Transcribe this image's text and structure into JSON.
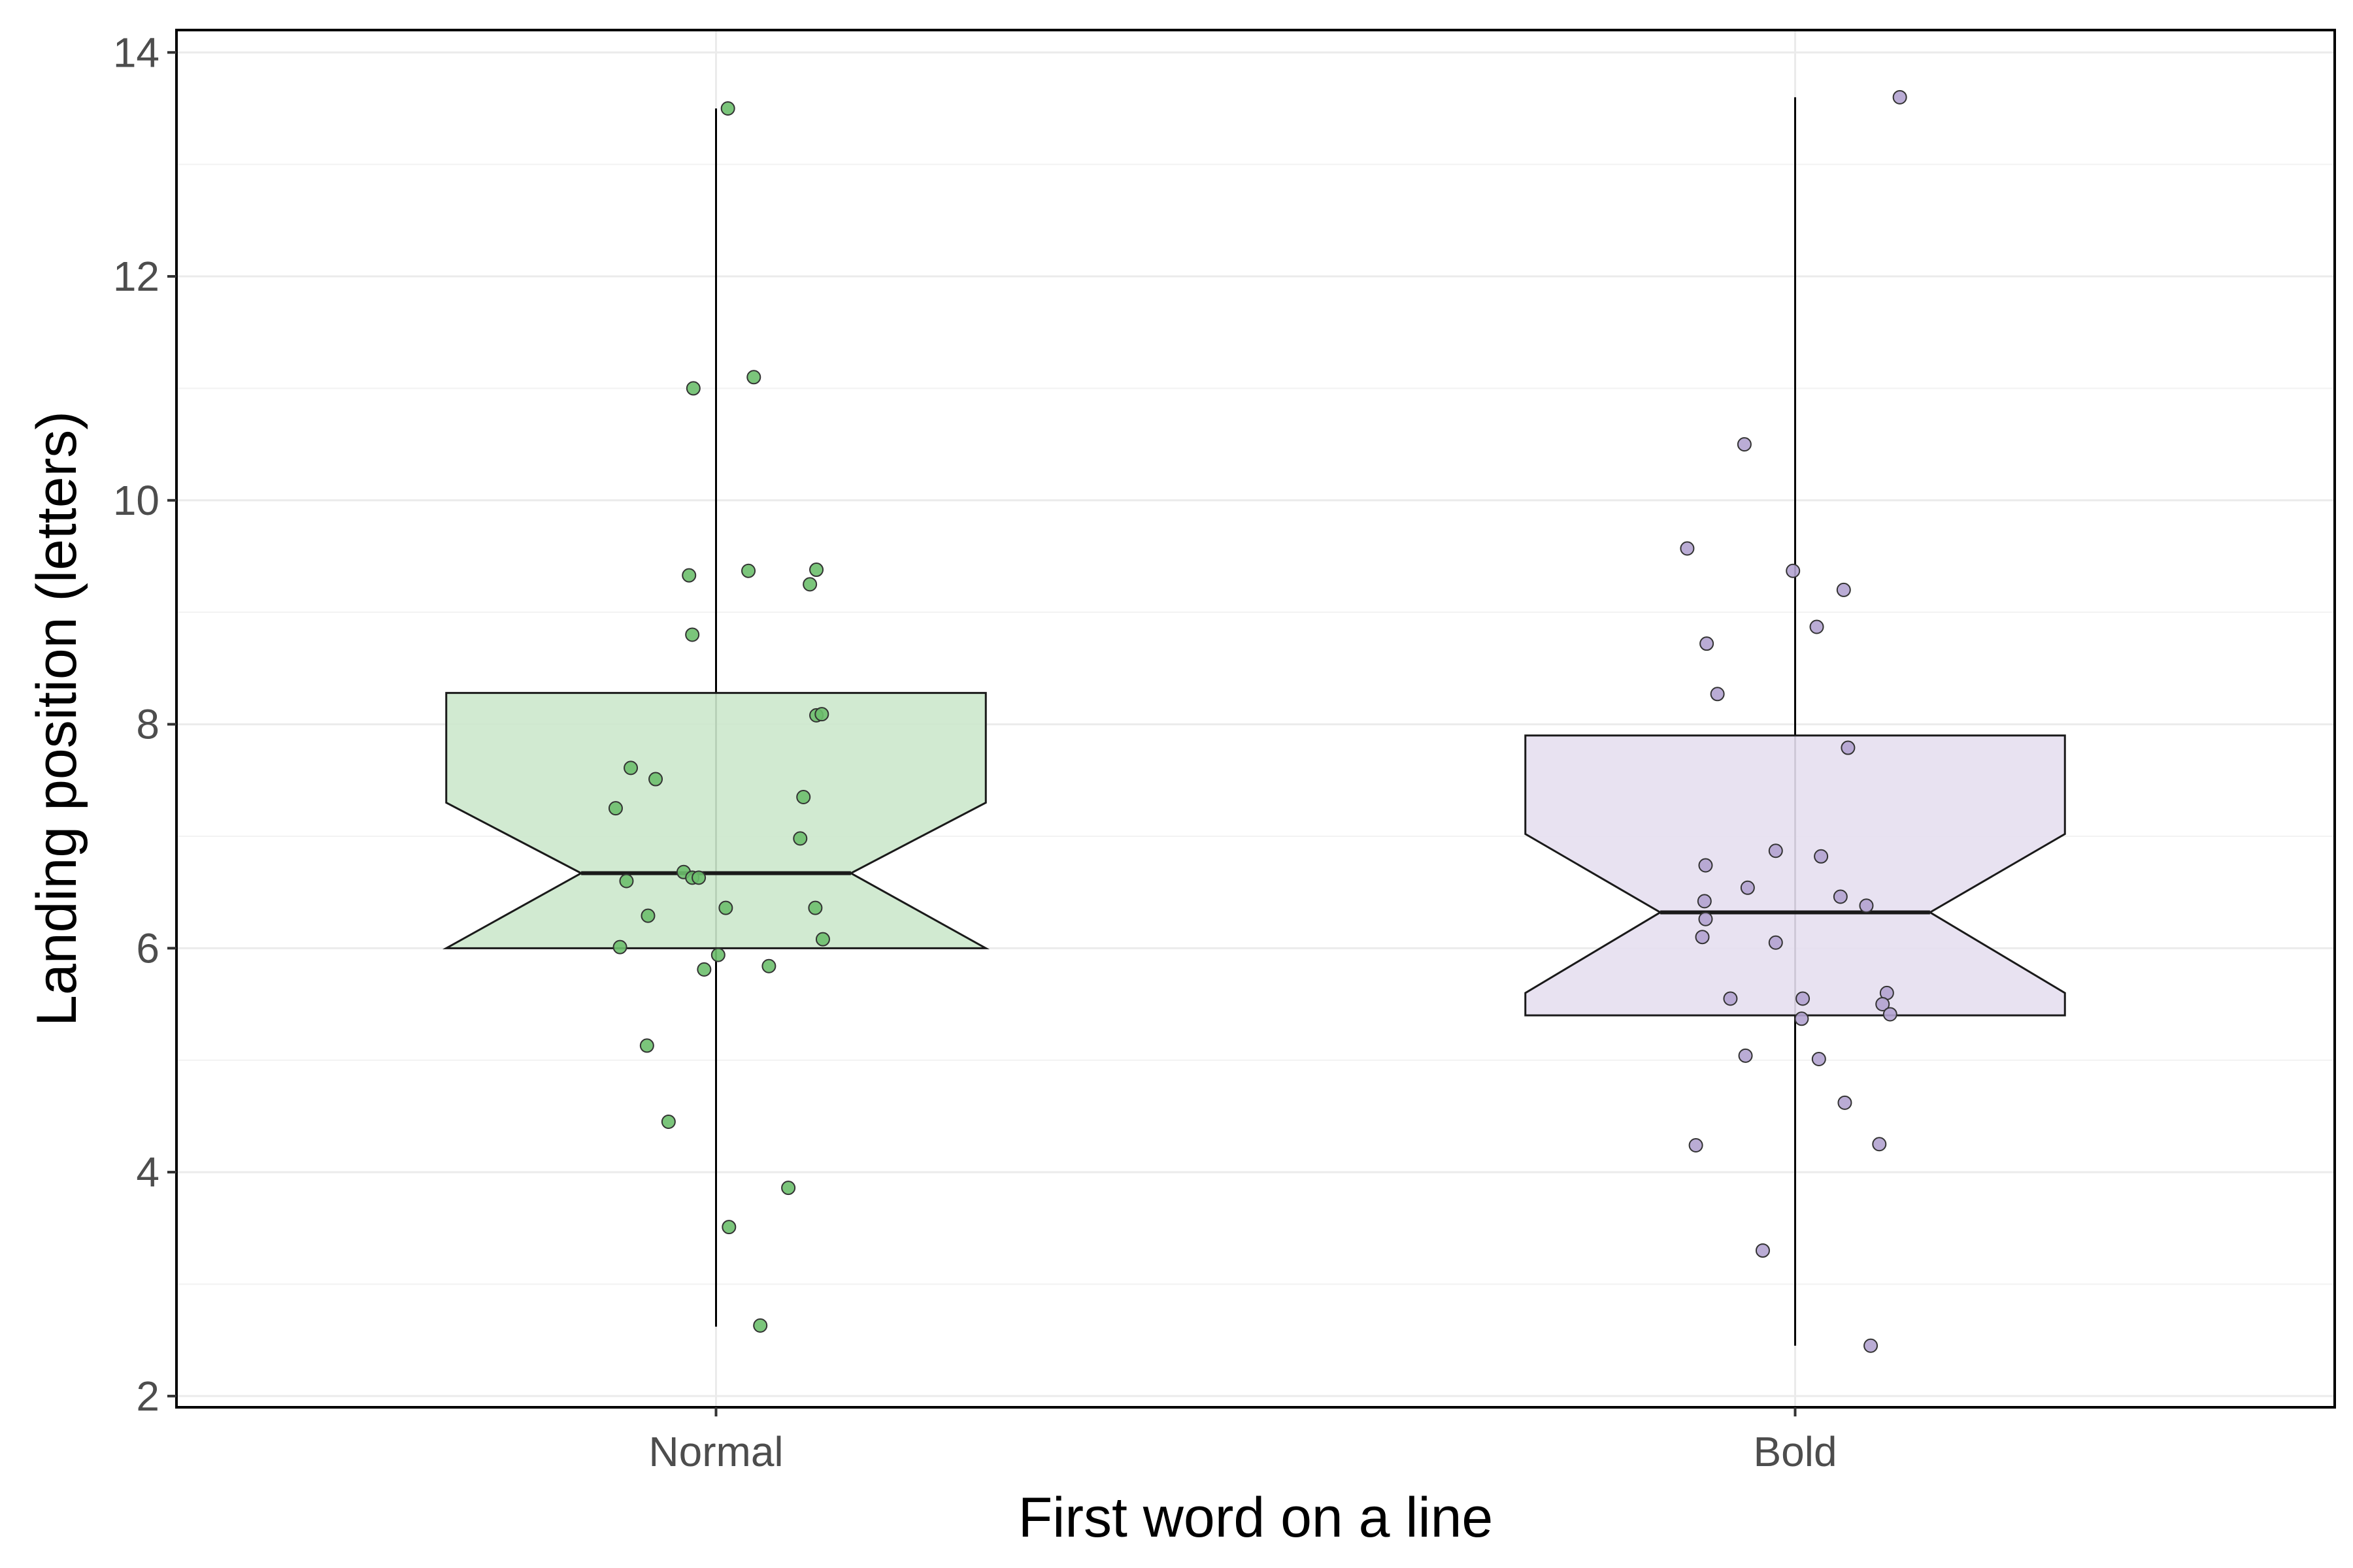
{
  "chart_data": {
    "type": "boxplot",
    "xlabel": "First word on a line",
    "ylabel": "Landing position (letters)",
    "categories": [
      "Normal",
      "Bold"
    ],
    "ylim": [
      1.9,
      14.2
    ],
    "yticks": [
      2,
      4,
      6,
      8,
      10,
      12,
      14
    ],
    "grid": true,
    "notched": true,
    "jitter_points": true,
    "boxes": [
      {
        "category": "Normal",
        "fill": "#cce8cc",
        "point_color": "#6dbf6d",
        "whisker_low": 2.62,
        "q1": 6.0,
        "median": 6.67,
        "q3": 8.28,
        "whisker_high": 13.5,
        "notch_low": 6.0,
        "notch_high": 7.3,
        "points": [
          {
            "x": 0.011,
            "y": 13.5
          },
          {
            "x": -0.021,
            "y": 11.0
          },
          {
            "x": 0.035,
            "y": 11.1
          },
          {
            "x": -0.025,
            "y": 9.33
          },
          {
            "x": 0.03,
            "y": 9.37
          },
          {
            "x": 0.093,
            "y": 9.38
          },
          {
            "x": 0.087,
            "y": 9.25
          },
          {
            "x": -0.022,
            "y": 8.8
          },
          {
            "x": 0.093,
            "y": 8.08
          },
          {
            "x": 0.098,
            "y": 8.09
          },
          {
            "x": -0.079,
            "y": 7.61
          },
          {
            "x": -0.056,
            "y": 7.51
          },
          {
            "x": 0.081,
            "y": 7.35
          },
          {
            "x": -0.093,
            "y": 7.25
          },
          {
            "x": 0.078,
            "y": 6.98
          },
          {
            "x": -0.03,
            "y": 6.68
          },
          {
            "x": -0.022,
            "y": 6.63
          },
          {
            "x": -0.016,
            "y": 6.63
          },
          {
            "x": -0.083,
            "y": 6.6
          },
          {
            "x": -0.063,
            "y": 6.29
          },
          {
            "x": 0.009,
            "y": 6.36
          },
          {
            "x": 0.092,
            "y": 6.36
          },
          {
            "x": 0.099,
            "y": 6.08
          },
          {
            "x": -0.089,
            "y": 6.01
          },
          {
            "x": 0.002,
            "y": 5.94
          },
          {
            "x": -0.011,
            "y": 5.81
          },
          {
            "x": 0.049,
            "y": 5.84
          },
          {
            "x": -0.064,
            "y": 5.13
          },
          {
            "x": -0.044,
            "y": 4.45
          },
          {
            "x": 0.067,
            "y": 3.86
          },
          {
            "x": 0.012,
            "y": 3.51
          },
          {
            "x": 0.041,
            "y": 2.63
          }
        ]
      },
      {
        "category": "Bold",
        "fill": "#e5dff0",
        "point_color": "#b3a3d0",
        "whisker_low": 2.45,
        "q1": 5.4,
        "median": 6.32,
        "q3": 7.9,
        "whisker_high": 13.6,
        "notch_low": 5.6,
        "notch_high": 7.02,
        "points": [
          {
            "x": 0.097,
            "y": 13.6
          },
          {
            "x": -0.047,
            "y": 10.5
          },
          {
            "x": -0.1,
            "y": 9.57
          },
          {
            "x": -0.002,
            "y": 9.37
          },
          {
            "x": 0.045,
            "y": 9.2
          },
          {
            "x": 0.02,
            "y": 8.87
          },
          {
            "x": -0.082,
            "y": 8.72
          },
          {
            "x": -0.072,
            "y": 8.27
          },
          {
            "x": 0.049,
            "y": 7.79
          },
          {
            "x": -0.018,
            "y": 6.87
          },
          {
            "x": 0.024,
            "y": 6.82
          },
          {
            "x": -0.083,
            "y": 6.74
          },
          {
            "x": -0.044,
            "y": 6.54
          },
          {
            "x": 0.042,
            "y": 6.46
          },
          {
            "x": -0.084,
            "y": 6.42
          },
          {
            "x": 0.066,
            "y": 6.38
          },
          {
            "x": -0.083,
            "y": 6.26
          },
          {
            "x": -0.086,
            "y": 6.1
          },
          {
            "x": -0.018,
            "y": 6.05
          },
          {
            "x": 0.085,
            "y": 5.6
          },
          {
            "x": 0.007,
            "y": 5.55
          },
          {
            "x": -0.06,
            "y": 5.55
          },
          {
            "x": 0.081,
            "y": 5.5
          },
          {
            "x": 0.088,
            "y": 5.41
          },
          {
            "x": 0.006,
            "y": 5.37
          },
          {
            "x": -0.046,
            "y": 5.04
          },
          {
            "x": 0.022,
            "y": 5.01
          },
          {
            "x": 0.046,
            "y": 4.62
          },
          {
            "x": -0.092,
            "y": 4.24
          },
          {
            "x": 0.078,
            "y": 4.25
          },
          {
            "x": -0.03,
            "y": 3.3
          },
          {
            "x": 0.07,
            "y": 2.45
          }
        ]
      }
    ]
  }
}
